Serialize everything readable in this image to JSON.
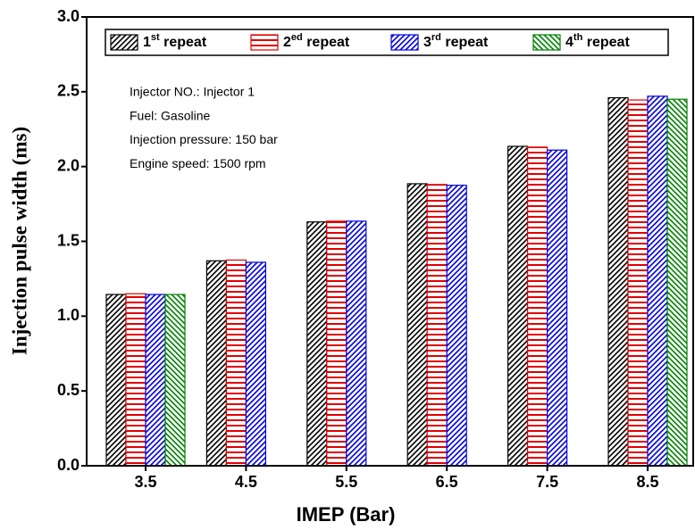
{
  "chart_data": {
    "type": "bar",
    "xlabel": "IMEP (Bar)",
    "ylabel": "Injection pulse width (ms)",
    "categories": [
      "3.5",
      "4.5",
      "5.5",
      "6.5",
      "7.5",
      "8.5"
    ],
    "series": [
      {
        "name": "1st repeat",
        "color": "#000000",
        "hatch": "diagonal",
        "values": [
          1.145,
          1.37,
          1.63,
          1.885,
          2.135,
          2.46
        ]
      },
      {
        "name": "2ed repeat",
        "color": "#e00000",
        "hatch": "horizontal",
        "values": [
          1.15,
          1.375,
          1.635,
          1.88,
          2.13,
          2.445
        ]
      },
      {
        "name": "3rd repeat",
        "color": "#0000e0",
        "hatch": "diagonal",
        "values": [
          1.145,
          1.36,
          1.635,
          1.875,
          2.11,
          2.47
        ]
      },
      {
        "name": "4th repeat",
        "color": "#008000",
        "hatch": "antidiagonal",
        "values": [
          1.145,
          null,
          null,
          null,
          null,
          2.45
        ]
      }
    ],
    "annotations": [
      "Injector NO.: Injector 1",
      "Fuel: Gasoline",
      "Injection pressure: 150 bar",
      "Engine speed: 1500 rpm"
    ],
    "ylim": [
      0,
      3
    ],
    "yticks": [
      {
        "value": 0,
        "label": "0.0"
      },
      0.5,
      {
        "value": 1,
        "label": "1.0"
      },
      1.5,
      {
        "value": 2,
        "label": "2.0"
      },
      2.5,
      {
        "value": 3,
        "label": "3.0"
      }
    ],
    "legend": "top"
  }
}
